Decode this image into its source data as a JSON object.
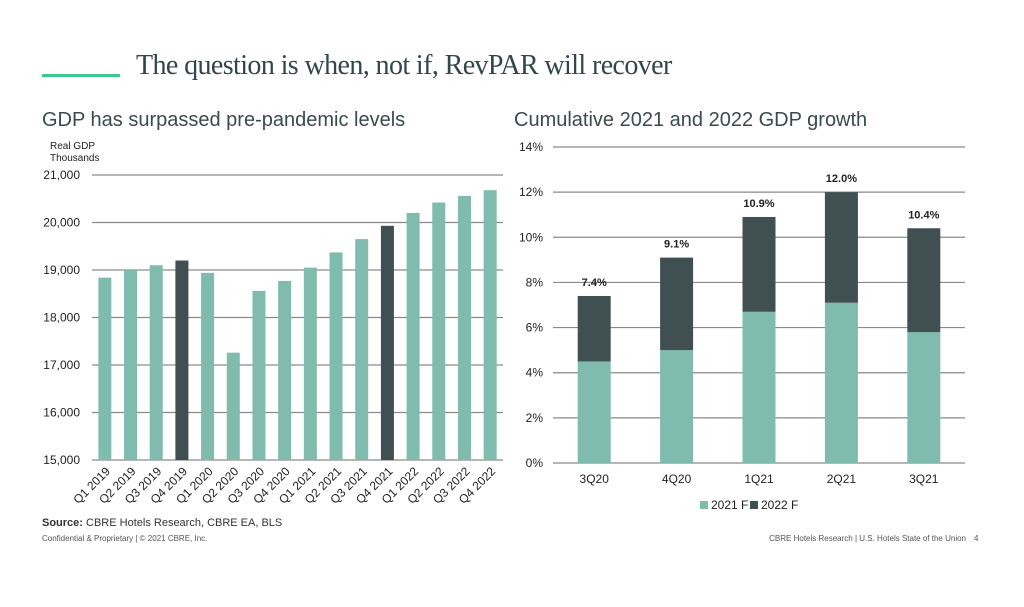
{
  "page": {
    "title": "The question is when, not if, RevPAR will recover",
    "accent_color": "#3cc98e",
    "source_label": "Source:",
    "source_text": " CBRE Hotels Research, CBRE EA, BLS",
    "footer_left": "Confidential & Proprietary | © 2021 CBRE, Inc.",
    "footer_right": "CBRE Hotels Research | U.S. Hotels State of the Union",
    "page_number": "4"
  },
  "colors": {
    "light": "#7fbcad",
    "dark": "#3f4f52",
    "grid": "#8a8a8a"
  },
  "chart_data": [
    {
      "type": "bar",
      "title": "GDP has surpassed pre-pandemic levels",
      "ylabel_lines": [
        "Real GDP",
        "Thousands"
      ],
      "xlabel": "",
      "ylim": [
        15000,
        21000
      ],
      "yticks": [
        15000,
        16000,
        17000,
        18000,
        19000,
        20000,
        21000
      ],
      "ytick_labels": [
        "15,000",
        "16,000",
        "17,000",
        "18,000",
        "19,000",
        "20,000",
        "21,000"
      ],
      "grid": true,
      "categories": [
        "Q1 2019",
        "Q2 2019",
        "Q3 2019",
        "Q4 2019",
        "Q1 2020",
        "Q2 2020",
        "Q3 2020",
        "Q4 2020",
        "Q1 2021",
        "Q2 2021",
        "Q3 2021",
        "Q4 2021",
        "Q1 2022",
        "Q2 2022",
        "Q3 2022",
        "Q4 2022"
      ],
      "values": [
        18840,
        19000,
        19100,
        19200,
        18940,
        17260,
        18560,
        18770,
        19050,
        19370,
        19650,
        19930,
        20200,
        20420,
        20560,
        20680
      ],
      "highlighted": [
        "Q4 2019",
        "Q4 2021"
      ]
    },
    {
      "type": "bar",
      "stacked": true,
      "title": "Cumulative 2021 and 2022 GDP growth",
      "xlabel": "",
      "ylabel": "",
      "ylim": [
        0,
        14
      ],
      "yticks": [
        0,
        2,
        4,
        6,
        8,
        10,
        12,
        14
      ],
      "ytick_labels": [
        "0%",
        "2%",
        "4%",
        "6%",
        "8%",
        "10%",
        "12%",
        "14%"
      ],
      "grid": true,
      "categories": [
        "3Q20",
        "4Q20",
        "1Q21",
        "2Q21",
        "3Q21"
      ],
      "series": [
        {
          "name": "2021 F",
          "values": [
            4.5,
            5.0,
            6.7,
            7.1,
            5.8
          ]
        },
        {
          "name": "2022 F",
          "values": [
            2.9,
            4.1,
            4.2,
            4.9,
            4.6
          ]
        }
      ],
      "totals": [
        7.4,
        9.1,
        10.9,
        12.0,
        10.4
      ],
      "total_labels": [
        "7.4%",
        "9.1%",
        "10.9%",
        "12.0%",
        "10.4%"
      ],
      "legend": {
        "position": "bottom",
        "entries": [
          "2021 F",
          "2022 F"
        ]
      }
    }
  ]
}
